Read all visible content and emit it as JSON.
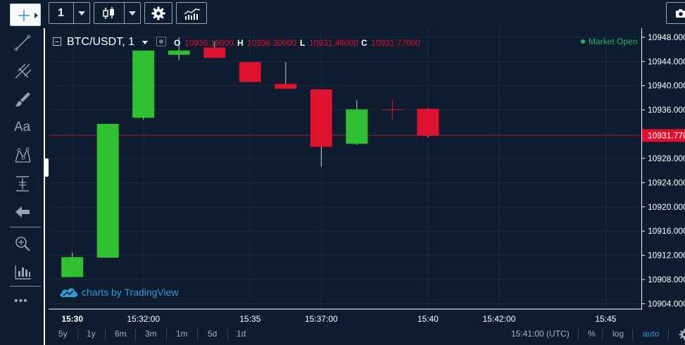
{
  "toolbar": {
    "interval_label": "1",
    "crosshair_icon": "crosshair-icon",
    "candles_icon": "candlestick-icon",
    "settings_icon": "gear-icon",
    "indicators_icon": "indicators-icon",
    "snapshot_icon": "camera-icon"
  },
  "left_tools": [
    "trend-line-icon",
    "pitchfork-icon",
    "brush-icon",
    "text-icon",
    "pattern-icon",
    "measure-icon",
    "back-arrow-icon",
    "zoom-icon",
    "bars-pattern-icon",
    "more-icon"
  ],
  "left_text_tool": "Aa",
  "left_more": "•••",
  "legend": {
    "symbol": "BTC/USDT, 1",
    "o_label": "O",
    "o_value": "10936.19000",
    "h_label": "H",
    "h_value": "10936.30000",
    "l_label": "L",
    "l_value": "10931.46000",
    "c_label": "C",
    "c_value": "10931.77000"
  },
  "market_status": "Market Open",
  "watermark": "charts by TradingView",
  "colors": {
    "background": "#0d1c2e",
    "up": "#2ec02e",
    "down": "#e0102f",
    "grid": "#1c2c3e",
    "price_line": "#a01428",
    "accent_blue": "#2f9bd6",
    "status_green": "#2ab06a"
  },
  "bottom_bar": {
    "ranges": [
      "5y",
      "1y",
      "6m",
      "3m",
      "1m",
      "5d",
      "1d"
    ],
    "clock": "15:41:00 (UTC)",
    "percent": "%",
    "log": "log",
    "auto": "auto"
  },
  "chart_data": {
    "type": "candlestick",
    "symbol": "BTC/USDT",
    "interval": "1",
    "ylim": [
      10903.0,
      10949.5
    ],
    "y_ticks": [
      "10904.000",
      "10908.000",
      "10912.000",
      "10916.000",
      "10920.000",
      "10924.000",
      "10928.000",
      "10932.000",
      "10936.000",
      "10940.000",
      "10944.000",
      "10948.000"
    ],
    "x_ticks": [
      "15:30",
      "15:32:00",
      "15:35",
      "15:37:00",
      "15:40",
      "15:42:00",
      "15:45"
    ],
    "x_tick_times": [
      "15:30",
      "15:32",
      "15:35",
      "15:37",
      "15:40",
      "15:42",
      "15:45"
    ],
    "x_range": [
      "15:29:20",
      "15:46:00"
    ],
    "candles": [
      {
        "time": "15:30",
        "open": 10908.4,
        "high": 10912.4,
        "low": 10908.4,
        "close": 10911.7
      },
      {
        "time": "15:31",
        "open": 10911.6,
        "high": 10933.7,
        "low": 10911.6,
        "close": 10933.7
      },
      {
        "time": "15:32",
        "open": 10934.7,
        "high": 10945.8,
        "low": 10934.4,
        "close": 10945.8
      },
      {
        "time": "15:33",
        "open": 10945.1,
        "high": 10948.0,
        "low": 10944.2,
        "close": 10945.8
      },
      {
        "time": "15:34",
        "open": 10946.3,
        "high": 10947.3,
        "low": 10944.6,
        "close": 10944.6
      },
      {
        "time": "15:35",
        "open": 10943.9,
        "high": 10943.9,
        "low": 10940.6,
        "close": 10940.6
      },
      {
        "time": "15:36",
        "open": 10940.3,
        "high": 10943.9,
        "low": 10939.5,
        "close": 10939.5
      },
      {
        "time": "15:37",
        "open": 10939.4,
        "high": 10939.4,
        "low": 10926.6,
        "close": 10929.9
      },
      {
        "time": "15:38",
        "open": 10930.4,
        "high": 10937.6,
        "low": 10930.2,
        "close": 10936.1
      },
      {
        "time": "15:39",
        "open": 10936.1,
        "high": 10937.8,
        "low": 10934.4,
        "close": 10936.1
      },
      {
        "time": "15:40",
        "open": 10936.19,
        "high": 10936.3,
        "low": 10931.46,
        "close": 10931.77
      }
    ],
    "last_price": "10931.770",
    "last_price_value": 10931.77
  }
}
